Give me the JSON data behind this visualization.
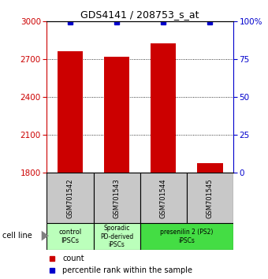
{
  "title": "GDS4141 / 208753_s_at",
  "samples": [
    "GSM701542",
    "GSM701543",
    "GSM701544",
    "GSM701545"
  ],
  "counts": [
    2760,
    2720,
    2820,
    1880
  ],
  "percentiles": [
    99.5,
    99.5,
    99.5,
    99.5
  ],
  "ylim_left": [
    1800,
    3000
  ],
  "ylim_right": [
    0,
    100
  ],
  "yticks_left": [
    1800,
    2100,
    2400,
    2700,
    3000
  ],
  "yticks_right": [
    0,
    25,
    50,
    75,
    100
  ],
  "bar_color": "#cc0000",
  "dot_color": "#0000cc",
  "bar_bottom": 1800,
  "groups": [
    {
      "span": [
        0,
        0
      ],
      "label": "control\nIPSCs",
      "color": "#bbffbb"
    },
    {
      "span": [
        1,
        1
      ],
      "label": "Sporadic\nPD-derived\niPSCs",
      "color": "#bbffbb"
    },
    {
      "span": [
        2,
        3
      ],
      "label": "presenilin 2 (PS2)\niPSCs",
      "color": "#44dd44"
    }
  ],
  "cell_line_label": "cell line",
  "legend_count_label": "count",
  "legend_percentile_label": "percentile rank within the sample",
  "table_bg_color": "#c8c8c8",
  "bar_width": 0.55
}
